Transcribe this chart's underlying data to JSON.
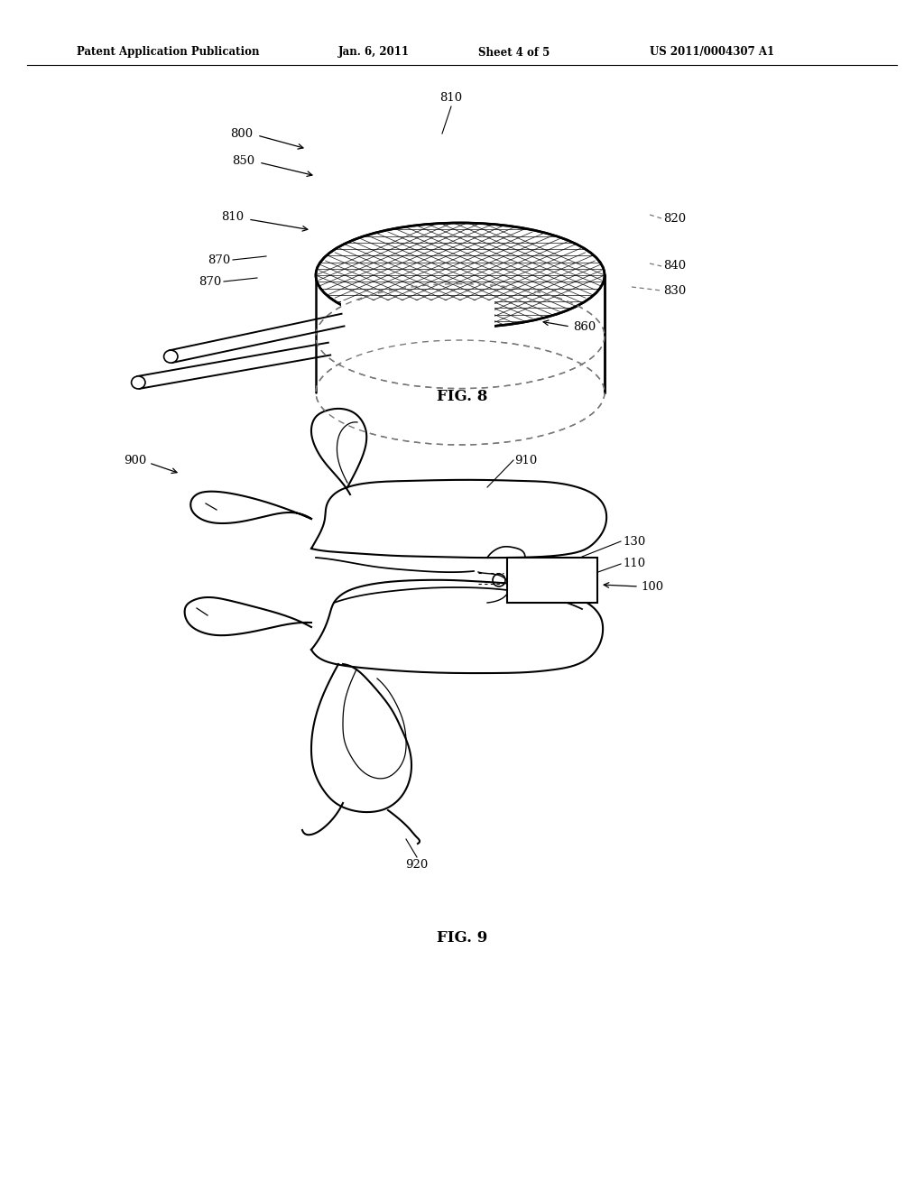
{
  "bg_color": "#ffffff",
  "page_width": 10.24,
  "page_height": 13.2,
  "header_text": "Patent Application Publication",
  "header_date": "Jan. 6, 2011",
  "header_sheet": "Sheet 4 of 5",
  "header_patent": "US 2011/0004307 A1",
  "fig8_label": "FIG. 8",
  "fig9_label": "FIG. 9",
  "text_color": "#000000",
  "line_color": "#000000",
  "dashed_color": "#777777"
}
